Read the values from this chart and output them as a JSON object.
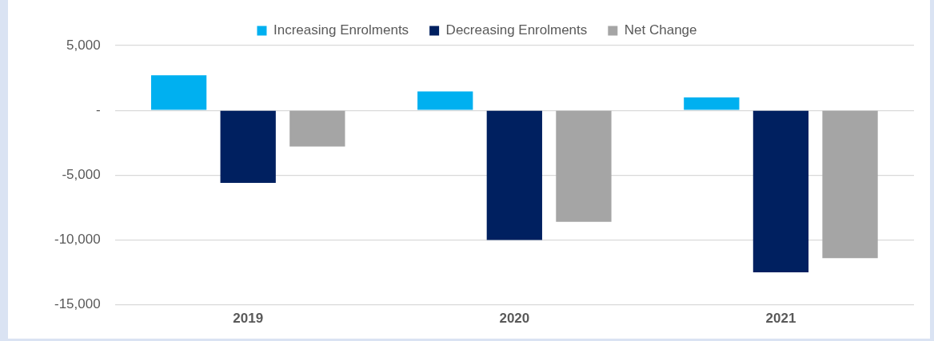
{
  "chart_data": {
    "type": "bar",
    "categories": [
      "2019",
      "2020",
      "2021"
    ],
    "series": [
      {
        "name": "Increasing Enrolments",
        "color": "#00b0f0",
        "values": [
          2700,
          1450,
          1000
        ]
      },
      {
        "name": "Decreasing Enrolments",
        "color": "#002060",
        "values": [
          -5600,
          -10000,
          -12500
        ]
      },
      {
        "name": "Net Change",
        "color": "#a5a5a5",
        "values": [
          -2800,
          -8600,
          -11400
        ]
      }
    ],
    "ylim": [
      -15000,
      5000
    ],
    "yticks": [
      {
        "value": -15000,
        "label": "-15,000"
      },
      {
        "value": -10000,
        "label": "-10,000"
      },
      {
        "value": -5000,
        "label": "-5,000"
      },
      {
        "value": 0,
        "label": "-"
      },
      {
        "value": 5000,
        "label": "5,000"
      }
    ],
    "grid": "y",
    "legend": "top"
  }
}
